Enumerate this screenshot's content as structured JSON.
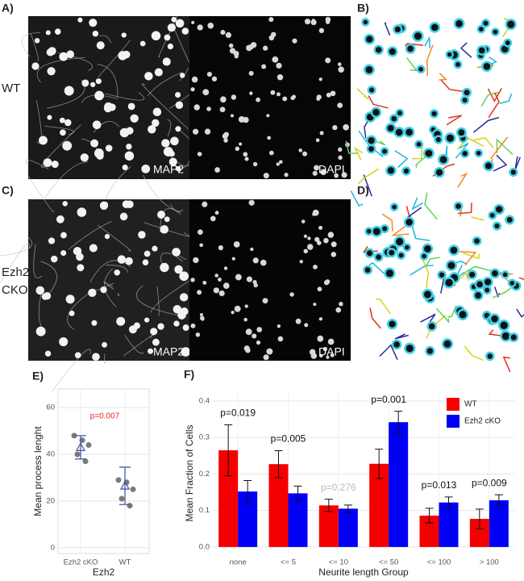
{
  "panels": {
    "a": "A)",
    "b": "B)",
    "c": "C)",
    "d": "D)",
    "e": "E)",
    "f": "F)"
  },
  "rows": [
    {
      "label": [
        "WT"
      ],
      "stain_labels": [
        "MAP2",
        "DAPI"
      ]
    },
    {
      "label": [
        "Ezh2",
        "CKO"
      ],
      "stain_labels": [
        "MAP2",
        "DAPI"
      ]
    }
  ],
  "chart_data": [
    {
      "type": "dot",
      "categories": [
        "Ezh2 cKO",
        "WT"
      ],
      "points": [
        [
          48,
          46,
          44,
          40,
          37
        ],
        [
          29,
          28,
          25,
          21,
          18
        ]
      ],
      "means": [
        43,
        26.5
      ],
      "errors": [
        5,
        8
      ],
      "ylim": [
        -2.5,
        68
      ],
      "yticks": [
        0,
        20,
        40,
        60
      ],
      "xlabel": "Ezh2",
      "ylabel": "Mean process lenght",
      "annotation": "p=0.007",
      "annotation_color": "#e8231f",
      "point_color": "#7a7a7a",
      "mean_color": "#4a5aa8",
      "grid": true
    },
    {
      "type": "bar",
      "categories": [
        "none",
        "<= 5",
        "<= 10",
        "<= 50",
        "<= 100",
        "> 100"
      ],
      "series": [
        {
          "name": "WT",
          "color": "#f40000",
          "values": [
            0.265,
            0.227,
            0.114,
            0.228,
            0.086,
            0.077
          ],
          "errors": [
            0.07,
            0.037,
            0.017,
            0.04,
            0.02,
            0.027
          ]
        },
        {
          "name": "Ezh2 cKO",
          "color": "#0000f4",
          "values": [
            0.152,
            0.147,
            0.105,
            0.342,
            0.122,
            0.128
          ],
          "errors": [
            0.03,
            0.02,
            0.01,
            0.03,
            0.015,
            0.015
          ]
        }
      ],
      "annotations": [
        "p=0.019",
        "p=0.005",
        "p=0.276",
        "p=0.001",
        "p=0.013",
        "p=0.009"
      ],
      "annotation_colors": [
        "#111",
        "#111",
        "#bbbbbb",
        "#111",
        "#111",
        "#111"
      ],
      "ylim": [
        -0.018,
        0.422
      ],
      "yticks": [
        {
          "value": 0,
          "label": "0.0"
        },
        0.1,
        0.2,
        0.3,
        0.4
      ],
      "xlabel": "Neurite length Group",
      "ylabel": "Mean Fraction of Cells",
      "legend": "top-right",
      "grid": true
    }
  ]
}
